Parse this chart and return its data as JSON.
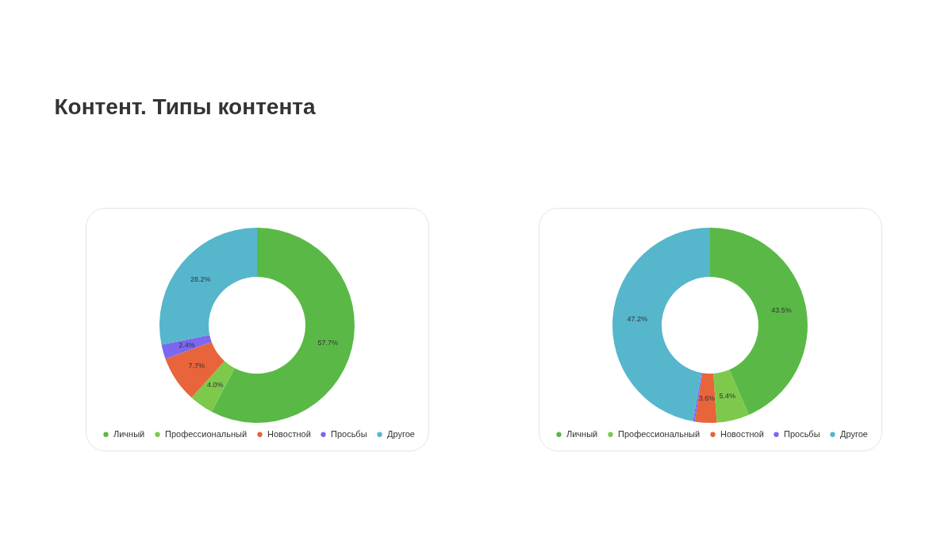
{
  "chart_data": [
    {
      "type": "donut",
      "title": "Контент. Типы контента",
      "categories": [
        "Личный",
        "Профессиональный",
        "Новостной",
        "Просьбы",
        "Другое"
      ],
      "values": [
        57.7,
        4.0,
        7.7,
        2.4,
        28.2
      ],
      "colors": [
        "#5ab946",
        "#7dc94b",
        "#e8643a",
        "#7b68ee",
        "#56b6cc"
      ],
      "value_labels": [
        "57.7%",
        "4.0%",
        "7.7%",
        "2.4%",
        "28.2%"
      ],
      "legend": "bottom"
    },
    {
      "type": "donut",
      "categories": [
        "Личный",
        "Профессиональный",
        "Новостной",
        "Просьбы",
        "Другое"
      ],
      "values": [
        43.5,
        5.4,
        3.6,
        0.3,
        47.2
      ],
      "colors": [
        "#5ab946",
        "#7dc94b",
        "#e8643a",
        "#7b68ee",
        "#56b6cc"
      ],
      "value_labels": [
        "43.5%",
        "5.4%",
        "3.6%",
        null,
        "47.2%"
      ],
      "legend": "bottom"
    }
  ]
}
